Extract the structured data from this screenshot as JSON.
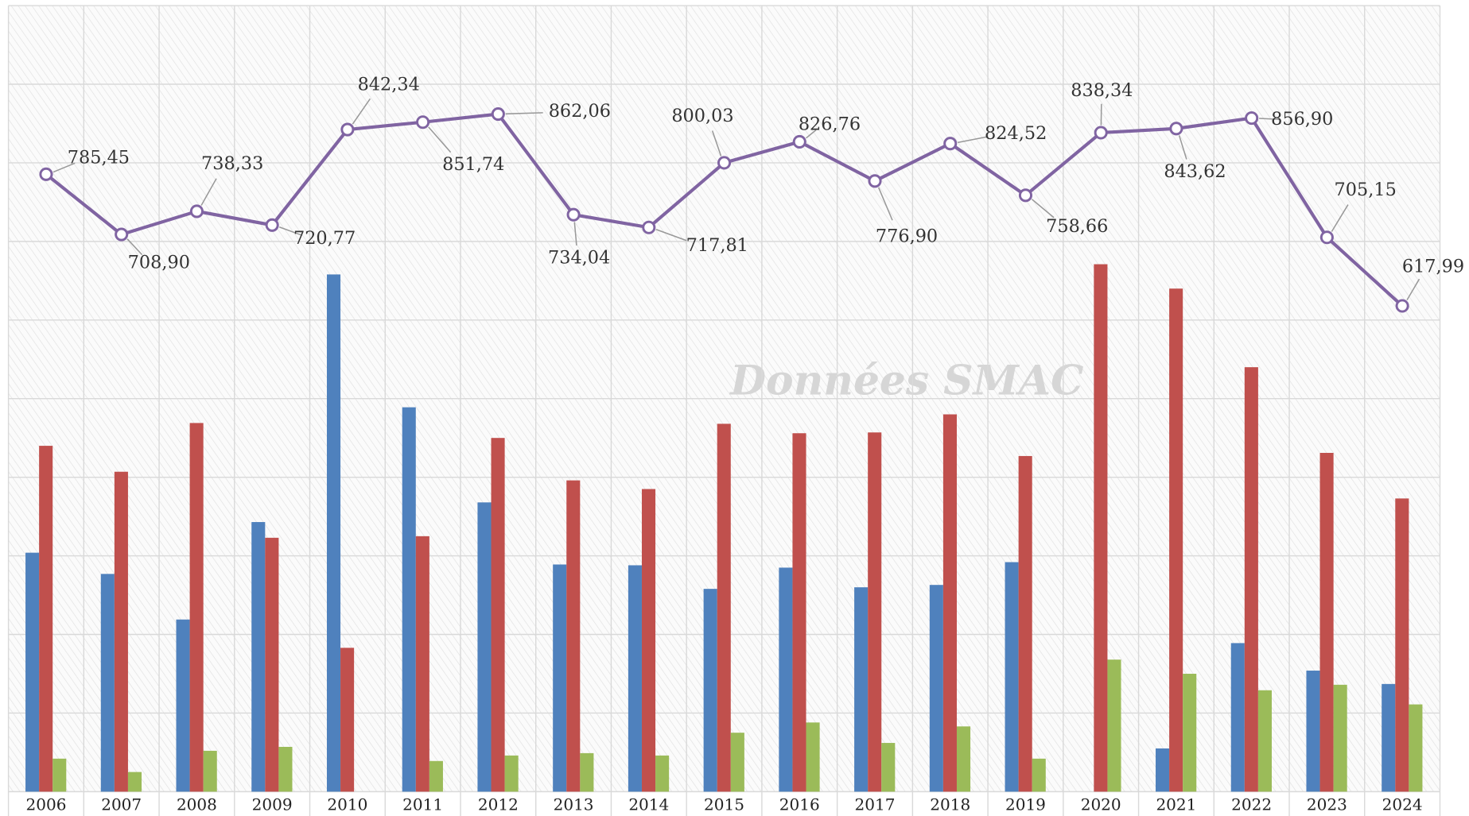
{
  "chart_data": {
    "type": "bar_line",
    "annotation": "Données SMAC",
    "categories": [
      "2006",
      "2007",
      "2008",
      "2009",
      "2010",
      "2011",
      "2012",
      "2013",
      "2014",
      "2015",
      "2016",
      "2017",
      "2018",
      "2019",
      "2020",
      "2021",
      "2022",
      "2023",
      "2024"
    ],
    "ylim": [
      0,
      1000
    ],
    "yticks": [
      0,
      100,
      200,
      300,
      400,
      500,
      600,
      700,
      800,
      900,
      1000
    ],
    "grid": true,
    "series": [
      {
        "type": "bar",
        "color": "#4f81bd",
        "values": [
          304,
          277,
          219,
          343,
          658,
          489,
          368,
          289,
          288,
          258,
          285,
          260,
          263,
          292,
          null,
          55,
          189,
          154,
          137
        ]
      },
      {
        "type": "bar",
        "color": "#c0504d",
        "values": [
          440,
          407,
          469,
          323,
          183,
          325,
          450,
          396,
          385,
          468,
          456,
          457,
          480,
          427,
          671,
          640,
          540,
          431,
          373
        ]
      },
      {
        "type": "bar",
        "color": "#9bbb59",
        "values": [
          42,
          25,
          52,
          57,
          null,
          39,
          46,
          49,
          46,
          75,
          88,
          62,
          83,
          42,
          168,
          150,
          129,
          136,
          111
        ]
      },
      {
        "type": "line",
        "color": "#8064a2",
        "values": [
          785.45,
          708.9,
          738.33,
          720.77,
          842.34,
          851.74,
          862.06,
          734.04,
          717.81,
          800.03,
          826.76,
          776.9,
          824.52,
          758.66,
          838.34,
          843.62,
          856.9,
          705.15,
          617.99
        ],
        "value_labels": [
          "785,45",
          "708,90",
          "738,33",
          "720,77",
          "842,34",
          "851,74",
          "862,06",
          "734,04",
          "717,81",
          "800,03",
          "826,76",
          "776,90",
          "824,52",
          "758,66",
          "838,34",
          "843,62",
          "856,90",
          "705,15",
          "617,99"
        ]
      }
    ]
  }
}
